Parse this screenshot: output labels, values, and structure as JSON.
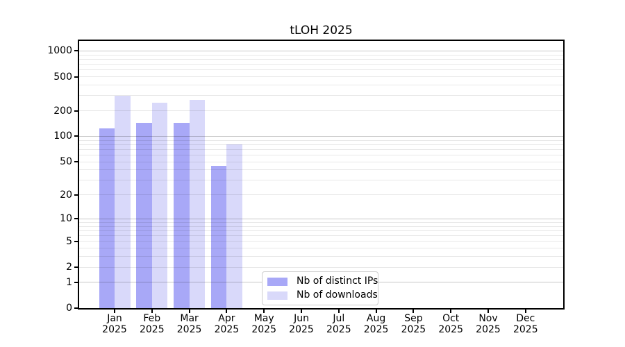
{
  "title": "tLOH 2025",
  "chart_data": {
    "type": "bar",
    "title": "tLOH 2025",
    "categories": [
      "Jan 2025",
      "Feb 2025",
      "Mar 2025",
      "Apr 2025",
      "May 2025",
      "Jun 2025",
      "Jul 2025",
      "Aug 2025",
      "Sep 2025",
      "Oct 2025",
      "Nov 2025",
      "Dec 2025"
    ],
    "series": [
      {
        "name": "Nb of distinct IPs",
        "color": "#a8a8f7",
        "values": [
          125,
          145,
          145,
          45,
          null,
          null,
          null,
          null,
          null,
          null,
          null,
          null
        ]
      },
      {
        "name": "Nb of downloads",
        "color": "#d9d9fa",
        "values": [
          300,
          250,
          270,
          80,
          null,
          null,
          null,
          null,
          null,
          null,
          null,
          null
        ]
      }
    ],
    "yscale": "log1p",
    "ytick_values": [
      1000,
      500,
      200,
      100,
      50,
      20,
      10,
      5,
      2,
      1,
      0
    ],
    "ytick_labels": [
      "1000",
      "500",
      "200",
      "100",
      "50",
      "20",
      "10",
      "5",
      "2",
      "1",
      "0"
    ],
    "ylim": [
      0,
      1200
    ],
    "xlabel": "",
    "ylabel": "",
    "grid": "horizontal major+minor, drawn above bars",
    "legend_position": "lower center",
    "colors": {
      "background": "#ffffff",
      "axis": "#000000",
      "grid_major": "rgba(0,0,0,0.22)",
      "grid_minor": "rgba(0,0,0,0.09)",
      "text": "#000000",
      "legend_border": "#cccccc"
    }
  }
}
